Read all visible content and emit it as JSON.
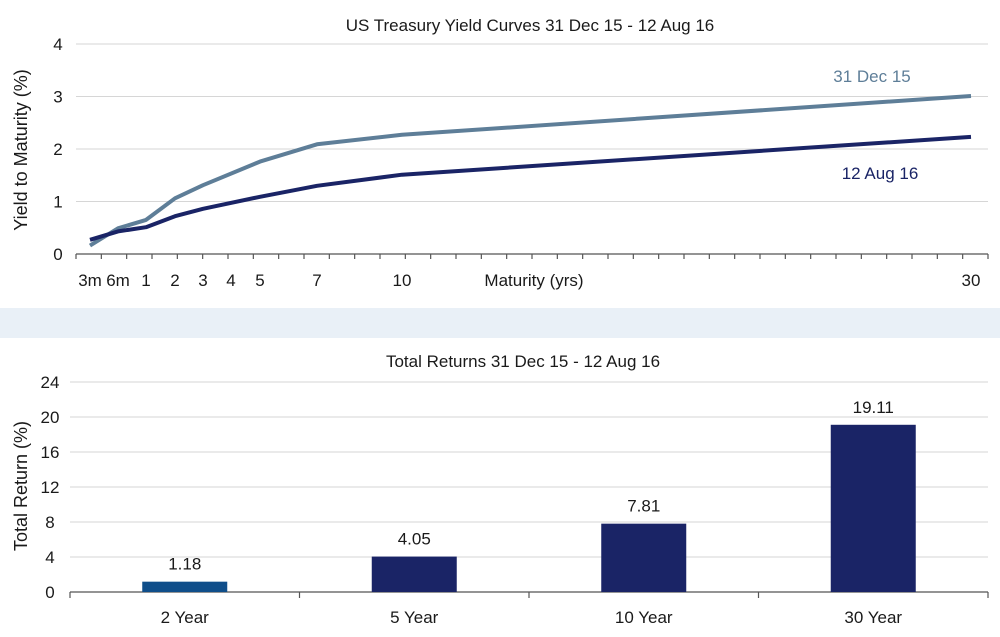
{
  "chart_data": [
    {
      "type": "line",
      "title": "US Treasury Yield Curves 31 Dec 15 - 12 Aug 16",
      "xlabel": "Maturity (yrs)",
      "ylabel": "Yield to Maturity (%)",
      "ylim": [
        0,
        4
      ],
      "xlim": [
        0,
        30
      ],
      "grid": true,
      "yticks": [
        0,
        1,
        2,
        3,
        4
      ],
      "xticks": [
        {
          "value": 0.25,
          "label": "3m"
        },
        {
          "value": 0.5,
          "label": "6m"
        },
        {
          "value": 1,
          "label": "1"
        },
        {
          "value": 2,
          "label": "2"
        },
        {
          "value": 3,
          "label": "3"
        },
        {
          "value": 4,
          "label": "4"
        },
        {
          "value": 5,
          "label": "5"
        },
        {
          "value": 7,
          "label": "7"
        },
        {
          "value": 10,
          "label": "10"
        },
        {
          "value": 30,
          "label": "30"
        }
      ],
      "series": [
        {
          "name": "31 Dec 15",
          "color": "#5e7e98",
          "points": [
            [
              0.25,
              0.16
            ],
            [
              0.5,
              0.49
            ],
            [
              1,
              0.65
            ],
            [
              2,
              1.06
            ],
            [
              3,
              1.31
            ],
            [
              5,
              1.76
            ],
            [
              7,
              2.09
            ],
            [
              10,
              2.27
            ],
            [
              30,
              3.01
            ]
          ]
        },
        {
          "name": "12 Aug 16",
          "color": "#1a2466",
          "points": [
            [
              0.25,
              0.27
            ],
            [
              0.5,
              0.43
            ],
            [
              1,
              0.51
            ],
            [
              2,
              0.72
            ],
            [
              3,
              0.86
            ],
            [
              5,
              1.09
            ],
            [
              7,
              1.3
            ],
            [
              10,
              1.51
            ],
            [
              30,
              2.23
            ]
          ]
        }
      ]
    },
    {
      "type": "bar",
      "title": "Total Returns 31 Dec 15 - 12 Aug 16",
      "xlabel": "",
      "ylabel": "Total Return (%)",
      "ylim": [
        0,
        24
      ],
      "yticks": [
        0,
        4,
        8,
        12,
        16,
        20,
        24
      ],
      "grid": true,
      "categories": [
        "2 Year",
        "5 Year",
        "10 Year",
        "30 Year"
      ],
      "values": [
        1.18,
        4.05,
        7.81,
        19.11
      ],
      "value_labels": [
        "1.18",
        "4.05",
        "7.81",
        "19.11"
      ],
      "colors": [
        "#0f4e8a",
        "#1a2466",
        "#1a2466",
        "#1a2466"
      ]
    }
  ]
}
